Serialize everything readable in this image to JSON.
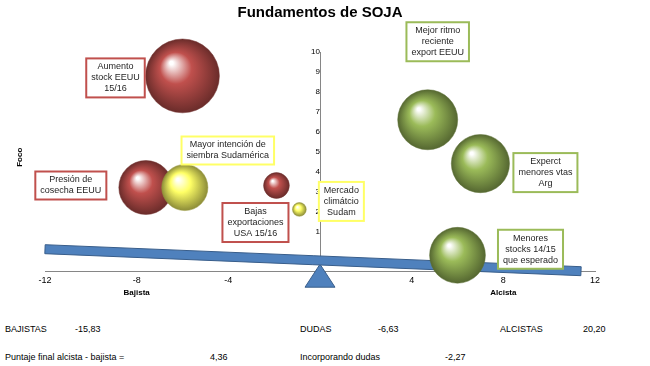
{
  "chart_data": {
    "type": "bubble",
    "title": "Fundamentos de SOJA",
    "ylabel": "Foco",
    "xlabel_left": "Bajista",
    "xlabel_right": "Alcista",
    "xlim": [
      -12,
      12
    ],
    "xticks": [
      -12,
      -8,
      -4,
      4,
      8,
      12
    ],
    "ylim": [
      -1,
      10
    ],
    "yticks": [
      1,
      2,
      3,
      4,
      5,
      6,
      7,
      8,
      9,
      10
    ],
    "grid": false,
    "points": [
      {
        "annotation": [
          "Aumento",
          "stock EEUU",
          "15/16"
        ],
        "x": -6.0,
        "y": 8.8,
        "size": 12.3,
        "color": "#c0504d"
      },
      {
        "annotation": [
          "Presión de",
          "cosecha EEUU"
        ],
        "x": -7.6,
        "y": 3.2,
        "size": 9.0,
        "color": "#c0504d"
      },
      {
        "annotation": [
          "Mayor intención de",
          "siembra Sudamérica"
        ],
        "x": -5.9,
        "y": 3.2,
        "size": 7.7,
        "color": "#ffff66"
      },
      {
        "annotation": [
          "Bajas",
          "exportaciones",
          "USA 15/16"
        ],
        "x": -1.9,
        "y": 3.3,
        "size": 4.3,
        "color": "#c0504d"
      },
      {
        "annotation": [
          "Mercado",
          "climátcio",
          "Sudam"
        ],
        "x": -0.9,
        "y": 2.1,
        "size": 2.3,
        "color": "#ffff66"
      },
      {
        "annotation": [
          "Mejor ritmo",
          "reciente",
          "export EEUU"
        ],
        "x": 4.7,
        "y": 6.6,
        "size": 10.0,
        "color": "#9bbb59"
      },
      {
        "annotation": [
          "Experct",
          "menores vtas",
          "Arg"
        ],
        "x": 7.0,
        "y": 4.4,
        "size": 9.7,
        "color": "#9bbb59"
      },
      {
        "annotation": [
          "Menores",
          "stocks 14/15",
          "que esperado"
        ],
        "x": 6.0,
        "y": -0.2,
        "size": 9.3,
        "color": "#9bbb59"
      }
    ],
    "summary": [
      [
        [
          "BAJISTAS",
          {
            "value": -15.83,
            "label": "-15,83"
          }
        ],
        [
          "DUDAS",
          {
            "value": -6.63,
            "label": "-6,63"
          }
        ],
        [
          "ALCISTAS",
          {
            "value": 20.2,
            "label": "20,20"
          }
        ]
      ],
      [
        [
          "Puntaje final alcista - bajista =",
          {
            "value": 4.36,
            "label": "4,36"
          }
        ],
        [
          "Incorporando dudas",
          {
            "value": -2.27,
            "label": "-2,27"
          }
        ]
      ]
    ]
  }
}
